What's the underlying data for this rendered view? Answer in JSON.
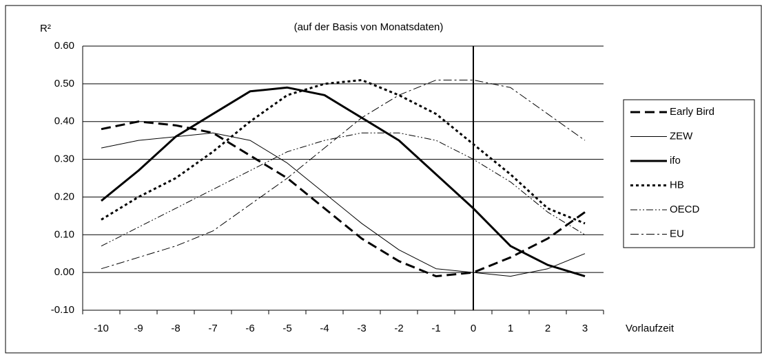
{
  "chart_data": {
    "type": "line",
    "title": "(auf der Basis von Monatsdaten)",
    "y_label": "R²",
    "x_label": "Vorlaufzeit",
    "categories": [
      "-10",
      "-9",
      "-8",
      "-7",
      "-6",
      "-5",
      "-4",
      "-3",
      "-2",
      "-1",
      "0",
      "1",
      "2",
      "3"
    ],
    "ylim": [
      -0.1,
      0.6
    ],
    "yticks": [
      {
        "value": -0.1,
        "label": "-0.10"
      },
      {
        "value": 0,
        "label": "0.00"
      },
      {
        "value": 0.1,
        "label": "0.10"
      },
      {
        "value": 0.2,
        "label": "0.20"
      },
      {
        "value": 0.3,
        "label": "0.30"
      },
      {
        "value": 0.4,
        "label": "0.40"
      },
      {
        "value": 0.5,
        "label": "0.50"
      },
      {
        "value": 0.6,
        "label": "0.60"
      }
    ],
    "grid": true,
    "legend": "right",
    "series": [
      {
        "name": "Early Bird",
        "color": "#000000",
        "values": [
          0.38,
          0.4,
          0.39,
          0.37,
          0.31,
          0.25,
          0.17,
          0.09,
          0.03,
          -0.01,
          0.0,
          0.04,
          0.09,
          0.16
        ]
      },
      {
        "name": "ZEW",
        "color": "#000000",
        "values": [
          0.33,
          0.35,
          0.36,
          0.37,
          0.35,
          0.29,
          0.21,
          0.13,
          0.06,
          0.01,
          0.0,
          -0.01,
          0.01,
          0.05
        ]
      },
      {
        "name": "ifo",
        "color": "#000000",
        "values": [
          0.19,
          0.27,
          0.36,
          0.42,
          0.48,
          0.49,
          0.47,
          0.41,
          0.35,
          0.26,
          0.17,
          0.07,
          0.02,
          -0.01
        ]
      },
      {
        "name": "HB",
        "color": "#000000",
        "values": [
          0.14,
          0.2,
          0.25,
          0.32,
          0.4,
          0.47,
          0.5,
          0.51,
          0.47,
          0.42,
          0.34,
          0.26,
          0.17,
          0.13
        ]
      },
      {
        "name": "OECD",
        "color": "#000000",
        "values": [
          0.07,
          0.12,
          0.17,
          0.22,
          0.27,
          0.32,
          0.35,
          0.37,
          0.37,
          0.35,
          0.3,
          0.24,
          0.16,
          0.1
        ]
      },
      {
        "name": "EU",
        "color": "#000000",
        "values": [
          0.01,
          0.04,
          0.07,
          0.11,
          0.18,
          0.25,
          0.33,
          0.41,
          0.47,
          0.51,
          0.51,
          0.49,
          0.42,
          0.35
        ]
      }
    ]
  }
}
